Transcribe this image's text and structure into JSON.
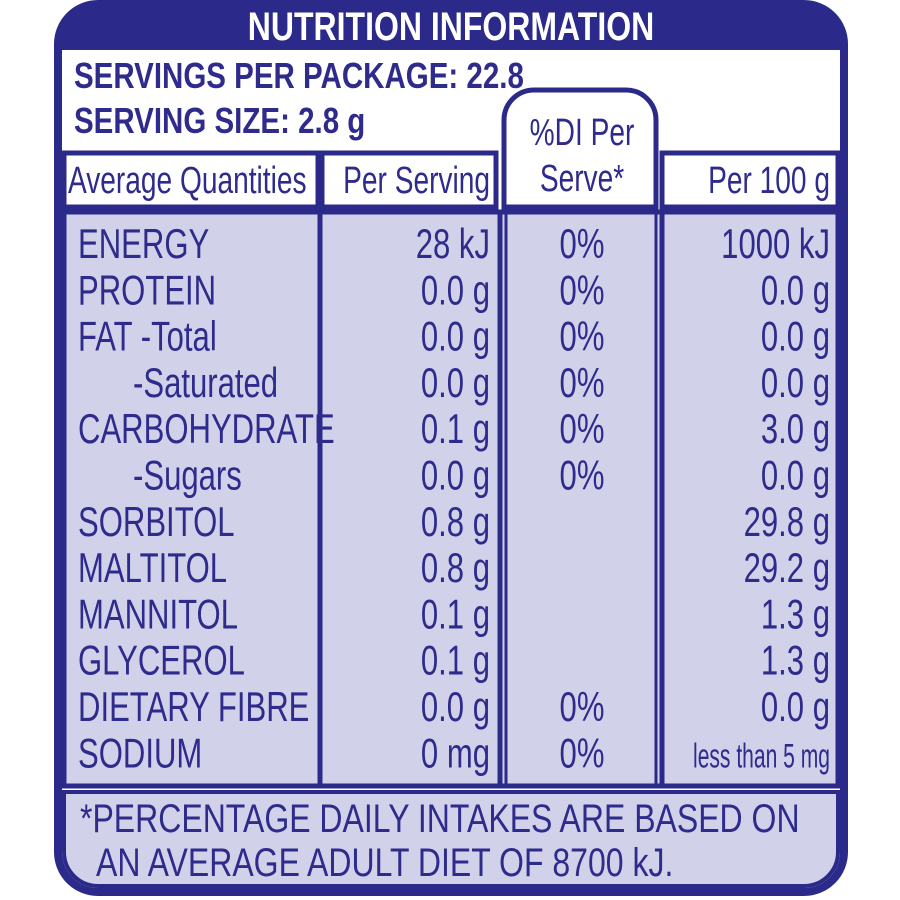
{
  "header": {
    "title": "NUTRITION INFORMATION",
    "servings_per_package": "SERVINGS PER PACKAGE: 22.8",
    "serving_size": "SERVING SIZE: 2.8 g"
  },
  "table": {
    "columns": [
      "Average Quantities",
      "Per Serving",
      [
        "%DI Per",
        "Serve*"
      ],
      "Per 100 g"
    ],
    "rows": [
      [
        "ENERGY",
        "28 kJ",
        "0%",
        "1000 kJ"
      ],
      [
        "PROTEIN",
        "0.0 g",
        "0%",
        "0.0 g"
      ],
      [
        "FAT -Total",
        "0.0 g",
        "0%",
        "0.0 g"
      ],
      [
        "-Saturated",
        "0.0 g",
        "0%",
        "0.0 g"
      ],
      [
        "CARBOHYDRATE",
        "0.1 g",
        "0%",
        "3.0 g"
      ],
      [
        "-Sugars",
        "0.0 g",
        "0%",
        "0.0 g"
      ],
      [
        "SORBITOL",
        "0.8 g",
        null,
        "29.8 g"
      ],
      [
        "MALTITOL",
        "0.8 g",
        null,
        "29.2 g"
      ],
      [
        "MANNITOL",
        "0.1 g",
        null,
        "1.3 g"
      ],
      [
        "GLYCEROL",
        "0.1 g",
        null,
        "1.3 g"
      ],
      [
        "DIETARY FIBRE",
        "0.0 g",
        "0%",
        "0.0 g"
      ],
      [
        "SODIUM",
        "0 mg",
        "0%",
        "less than 5 mg"
      ]
    ]
  },
  "footnote": [
    "*PERCENTAGE DAILY INTAKES ARE BASED ON",
    "AN AVERAGE ADULT DIET OF 8700 kJ."
  ]
}
